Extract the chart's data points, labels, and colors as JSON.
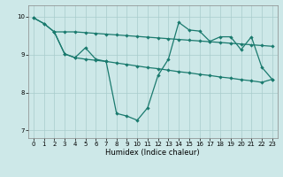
{
  "xlabel": "Humidex (Indice chaleur)",
  "xlim": [
    -0.5,
    23.5
  ],
  "ylim": [
    6.8,
    10.3
  ],
  "yticks": [
    7,
    8,
    9,
    10
  ],
  "xticks": [
    0,
    1,
    2,
    3,
    4,
    5,
    6,
    7,
    8,
    9,
    10,
    11,
    12,
    13,
    14,
    15,
    16,
    17,
    18,
    19,
    20,
    21,
    22,
    23
  ],
  "bg_color": "#cde8e8",
  "grid_color": "#a8cccc",
  "line_color": "#1a7a6e",
  "line1_x": [
    0,
    1,
    2,
    3,
    4,
    5,
    6,
    7,
    8,
    9,
    10,
    11,
    12,
    13,
    14,
    15,
    16,
    17,
    18,
    19,
    20,
    21,
    22,
    23
  ],
  "line1_y": [
    9.97,
    9.82,
    9.6,
    9.6,
    9.6,
    9.58,
    9.56,
    9.54,
    9.52,
    9.5,
    9.48,
    9.46,
    9.44,
    9.42,
    9.4,
    9.38,
    9.36,
    9.34,
    9.32,
    9.3,
    9.28,
    9.26,
    9.24,
    9.22
  ],
  "line2_x": [
    0,
    1,
    2,
    3,
    4,
    5,
    6,
    7,
    8,
    9,
    10,
    11,
    12,
    13,
    14,
    15,
    16,
    17,
    18,
    19,
    20,
    21,
    22,
    23
  ],
  "line2_y": [
    9.97,
    9.82,
    9.6,
    9.02,
    8.92,
    9.18,
    8.88,
    8.82,
    7.45,
    7.38,
    7.27,
    7.6,
    8.45,
    8.88,
    9.85,
    9.65,
    9.62,
    9.35,
    9.47,
    9.47,
    9.13,
    9.47,
    8.67,
    8.35
  ],
  "line3_x": [
    2,
    3,
    4,
    5,
    6,
    7,
    8,
    9,
    10,
    11,
    12,
    13,
    14,
    15,
    16,
    17,
    18,
    19,
    20,
    21,
    22,
    23
  ],
  "line3_y": [
    9.6,
    9.02,
    8.92,
    8.88,
    8.85,
    8.82,
    8.78,
    8.74,
    8.7,
    8.66,
    8.63,
    8.59,
    8.55,
    8.52,
    8.48,
    8.45,
    8.41,
    8.38,
    8.34,
    8.31,
    8.27,
    8.35
  ]
}
